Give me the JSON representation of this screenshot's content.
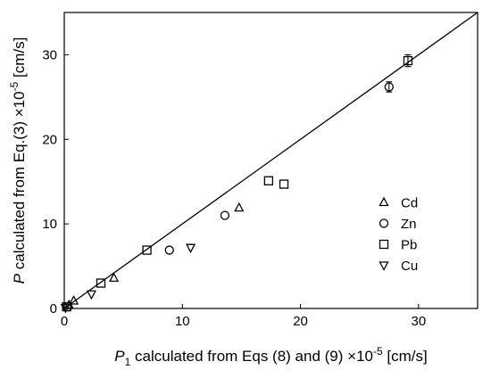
{
  "chart_data": {
    "type": "scatter",
    "xlabel": {
      "var": "P",
      "sub": "1",
      "text": " calculated from Eqs (8) and (9) ×10",
      "exp": "-5",
      "unit": " [cm/s]"
    },
    "ylabel": {
      "var": "P",
      "text": " calculated from Eq.(3) ×10",
      "exp": "-5",
      "unit": " [cm/s]"
    },
    "xlim": [
      0,
      35
    ],
    "ylim": [
      0,
      35
    ],
    "x_ticks": [
      0,
      10,
      20,
      30
    ],
    "y_ticks": [
      0,
      10,
      20,
      30
    ],
    "reference_line": {
      "from": [
        0,
        0
      ],
      "to": [
        35,
        35
      ],
      "style": "solid"
    },
    "legend_position": "right",
    "series": [
      {
        "name": "Cd",
        "marker": "triangle-up",
        "points": [
          {
            "x": 0.4,
            "y": 0.4
          },
          {
            "x": 0.8,
            "y": 0.9
          },
          {
            "x": 4.2,
            "y": 3.6
          },
          {
            "x": 14.8,
            "y": 11.9
          }
        ]
      },
      {
        "name": "Zn",
        "marker": "circle",
        "points": [
          {
            "x": 0.3,
            "y": 0.2
          },
          {
            "x": 8.9,
            "y": 6.9
          },
          {
            "x": 13.6,
            "y": 11.0
          },
          {
            "x": 27.5,
            "y": 26.2,
            "err": 0.6
          }
        ]
      },
      {
        "name": "Pb",
        "marker": "square",
        "points": [
          {
            "x": 0.2,
            "y": 0.2
          },
          {
            "x": 3.1,
            "y": 3.0
          },
          {
            "x": 7.0,
            "y": 6.9
          },
          {
            "x": 17.3,
            "y": 15.1
          },
          {
            "x": 18.6,
            "y": 14.7
          },
          {
            "x": 29.1,
            "y": 29.3,
            "err": 0.7
          }
        ]
      },
      {
        "name": "Cu",
        "marker": "triangle-down",
        "points": [
          {
            "x": 0.1,
            "y": 0.1
          },
          {
            "x": 2.3,
            "y": 1.7
          },
          {
            "x": 10.7,
            "y": 7.2
          }
        ]
      }
    ]
  }
}
